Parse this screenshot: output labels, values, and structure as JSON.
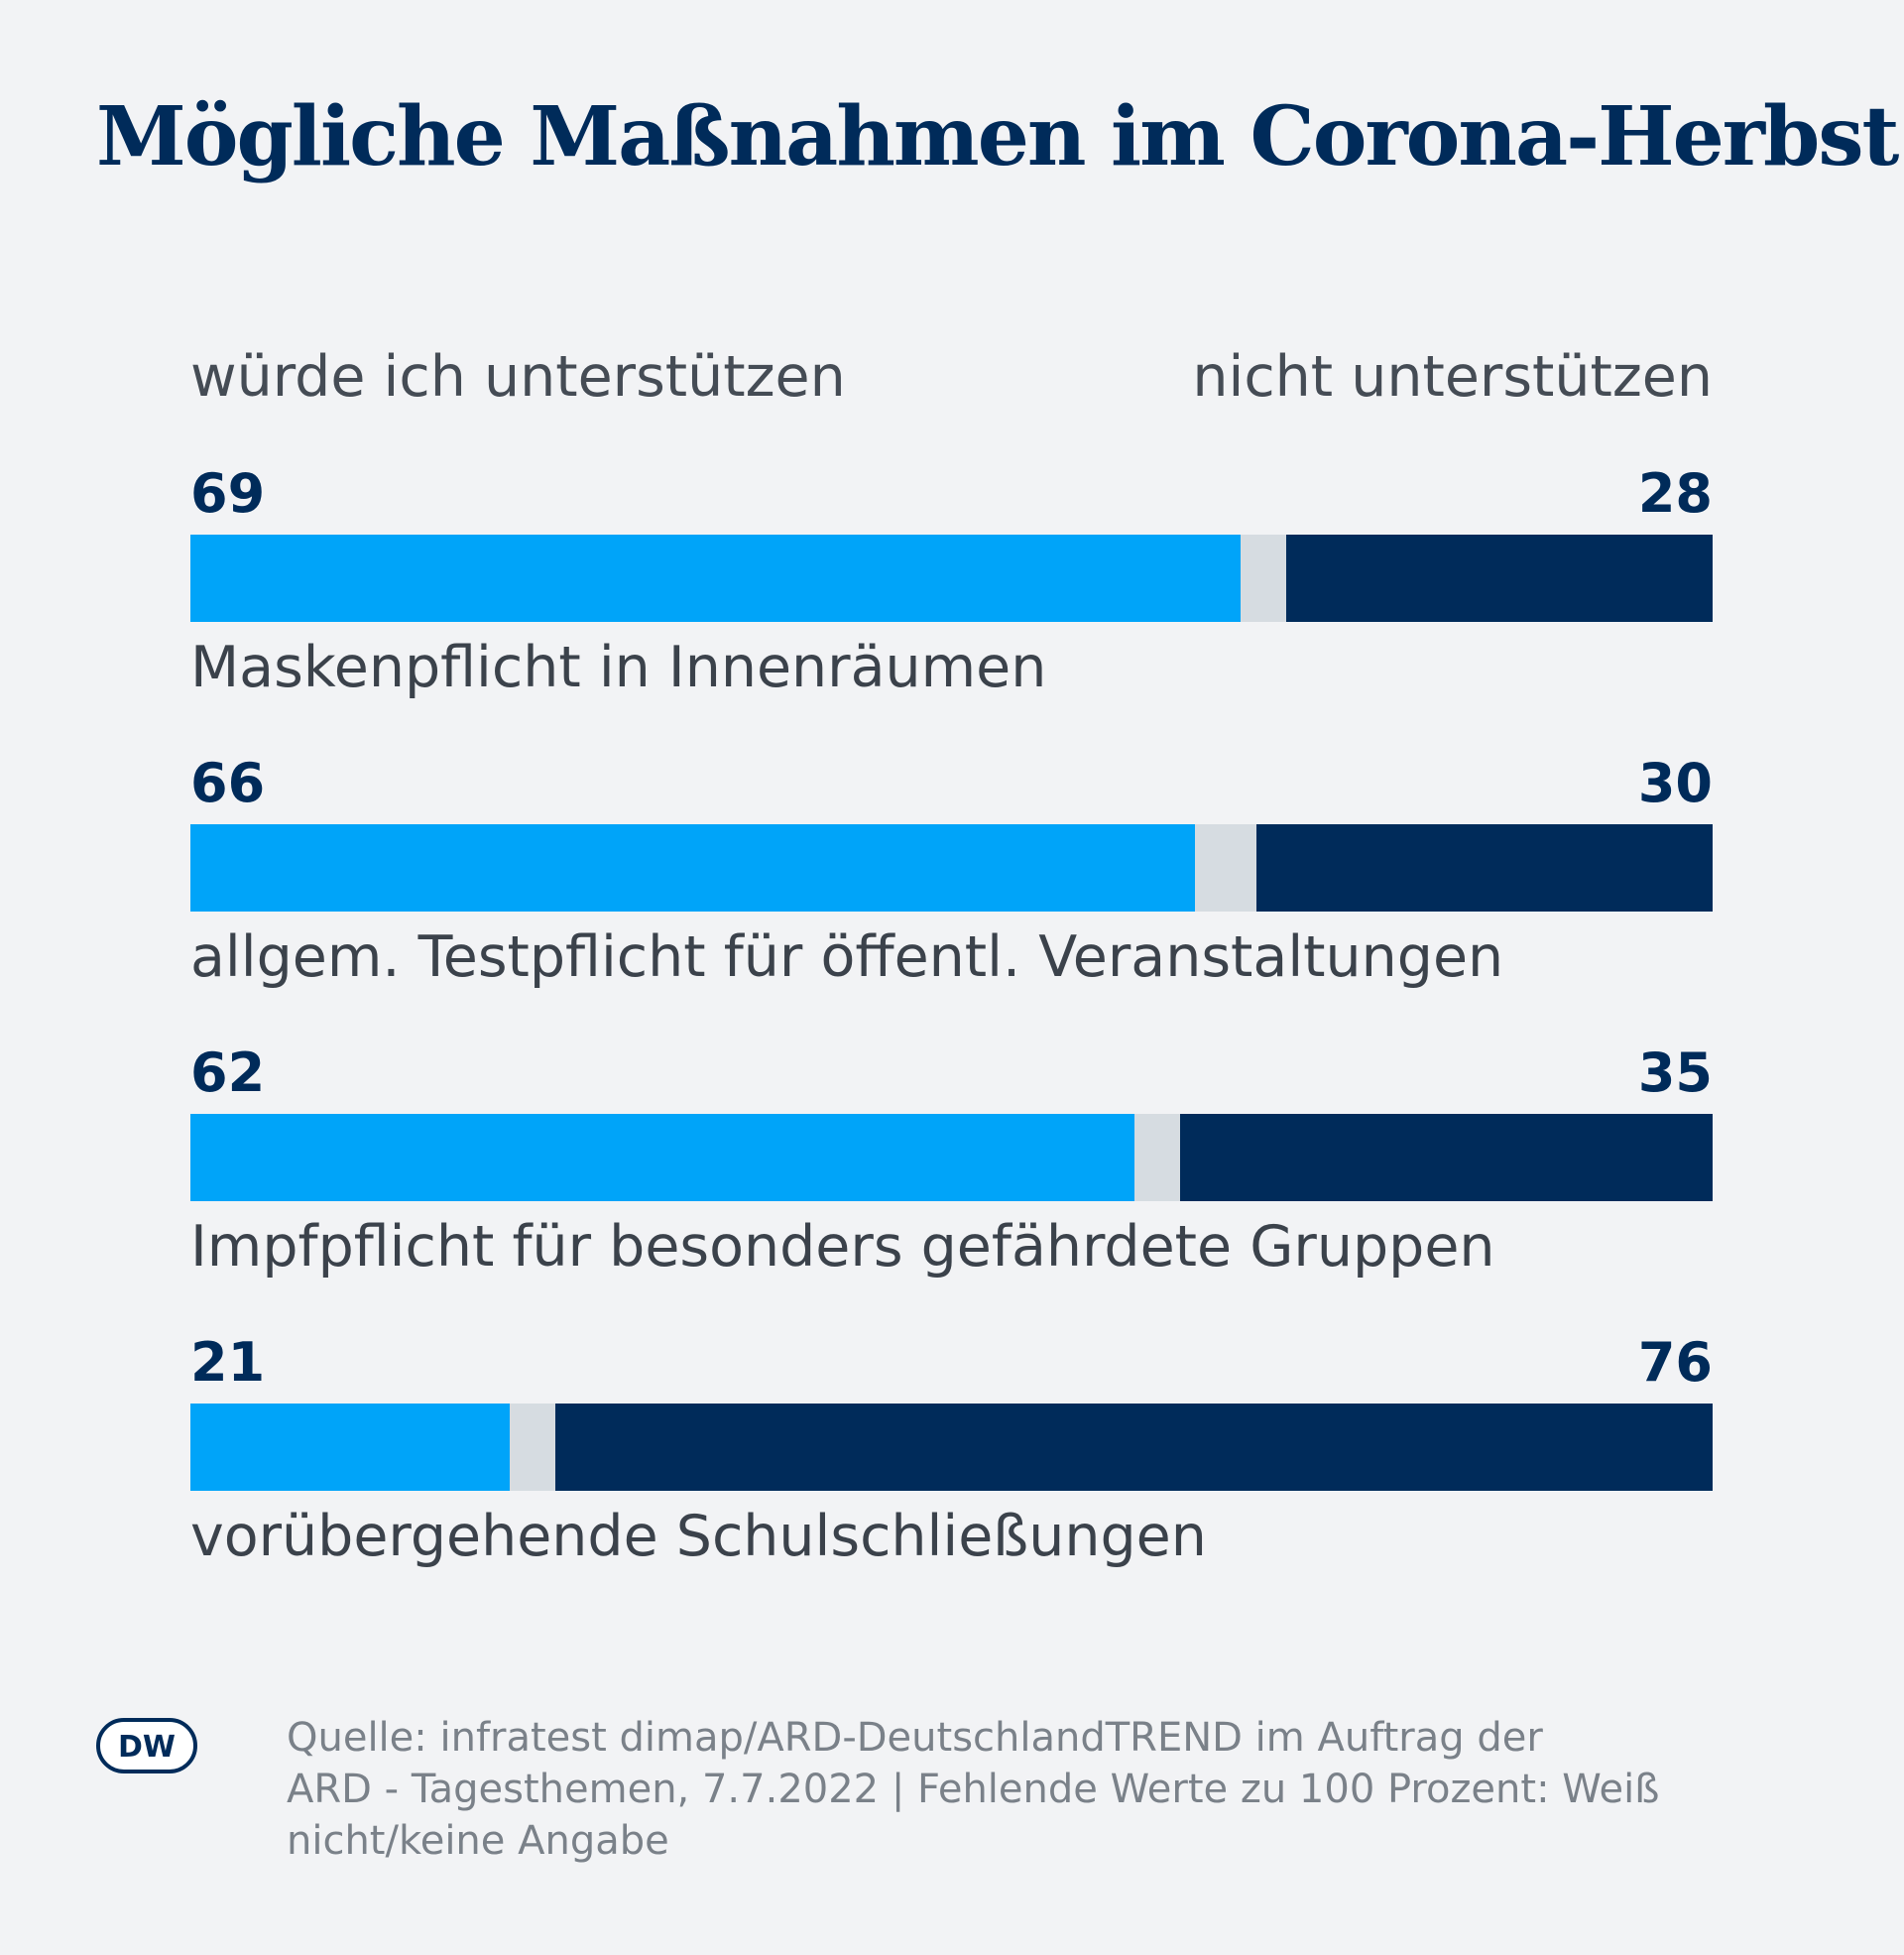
{
  "chart_data": {
    "type": "bar",
    "stacked": true,
    "orientation": "horizontal",
    "title": "Mögliche Maßnahmen im Corona-Herbst",
    "legend": {
      "support": "würde ich unterstützen",
      "oppose": "nicht unterstützen"
    },
    "categories": [
      "Maskenpflicht in Innenräumen",
      "allgem. Testpflicht für öffentl. Veranstaltungen",
      "Impfpflicht für besonders gefährdete Gruppen",
      "vorübergehende Schulschließungen"
    ],
    "series": [
      {
        "name": "würde ich unterstützen",
        "values": [
          69,
          66,
          62,
          21
        ]
      },
      {
        "name": "nicht unterstützen",
        "values": [
          28,
          30,
          35,
          76
        ]
      },
      {
        "name": "Weiß nicht/keine Angabe",
        "values": [
          3,
          4,
          3,
          3
        ]
      }
    ],
    "rows": [
      {
        "label": "Maskenpflicht in Innenräumen",
        "support": 69,
        "oppose": 28
      },
      {
        "label": "allgem. Testpflicht für öffentl. Veranstaltungen",
        "support": 66,
        "oppose": 30
      },
      {
        "label": "Impfpflicht für besonders gefährdete Gruppen",
        "support": 62,
        "oppose": 35
      },
      {
        "label": "vorübergehende Schulschließungen",
        "support": 21,
        "oppose": 76
      }
    ],
    "xlim": [
      0,
      100
    ],
    "colors": {
      "support": "#00a4f9",
      "oppose": "#002b5a",
      "unknown": "#d6dce1"
    }
  },
  "footer": {
    "logo_text": "DW",
    "source_lines": [
      "Quelle: infratest dimap/ARD-DeutschlandTREND im Auftrag der",
      "ARD - Tagesthemen, 7.7.2022 | Fehlende Werte zu 100 Prozent: Weiß",
      "nicht/keine Angabe"
    ]
  }
}
